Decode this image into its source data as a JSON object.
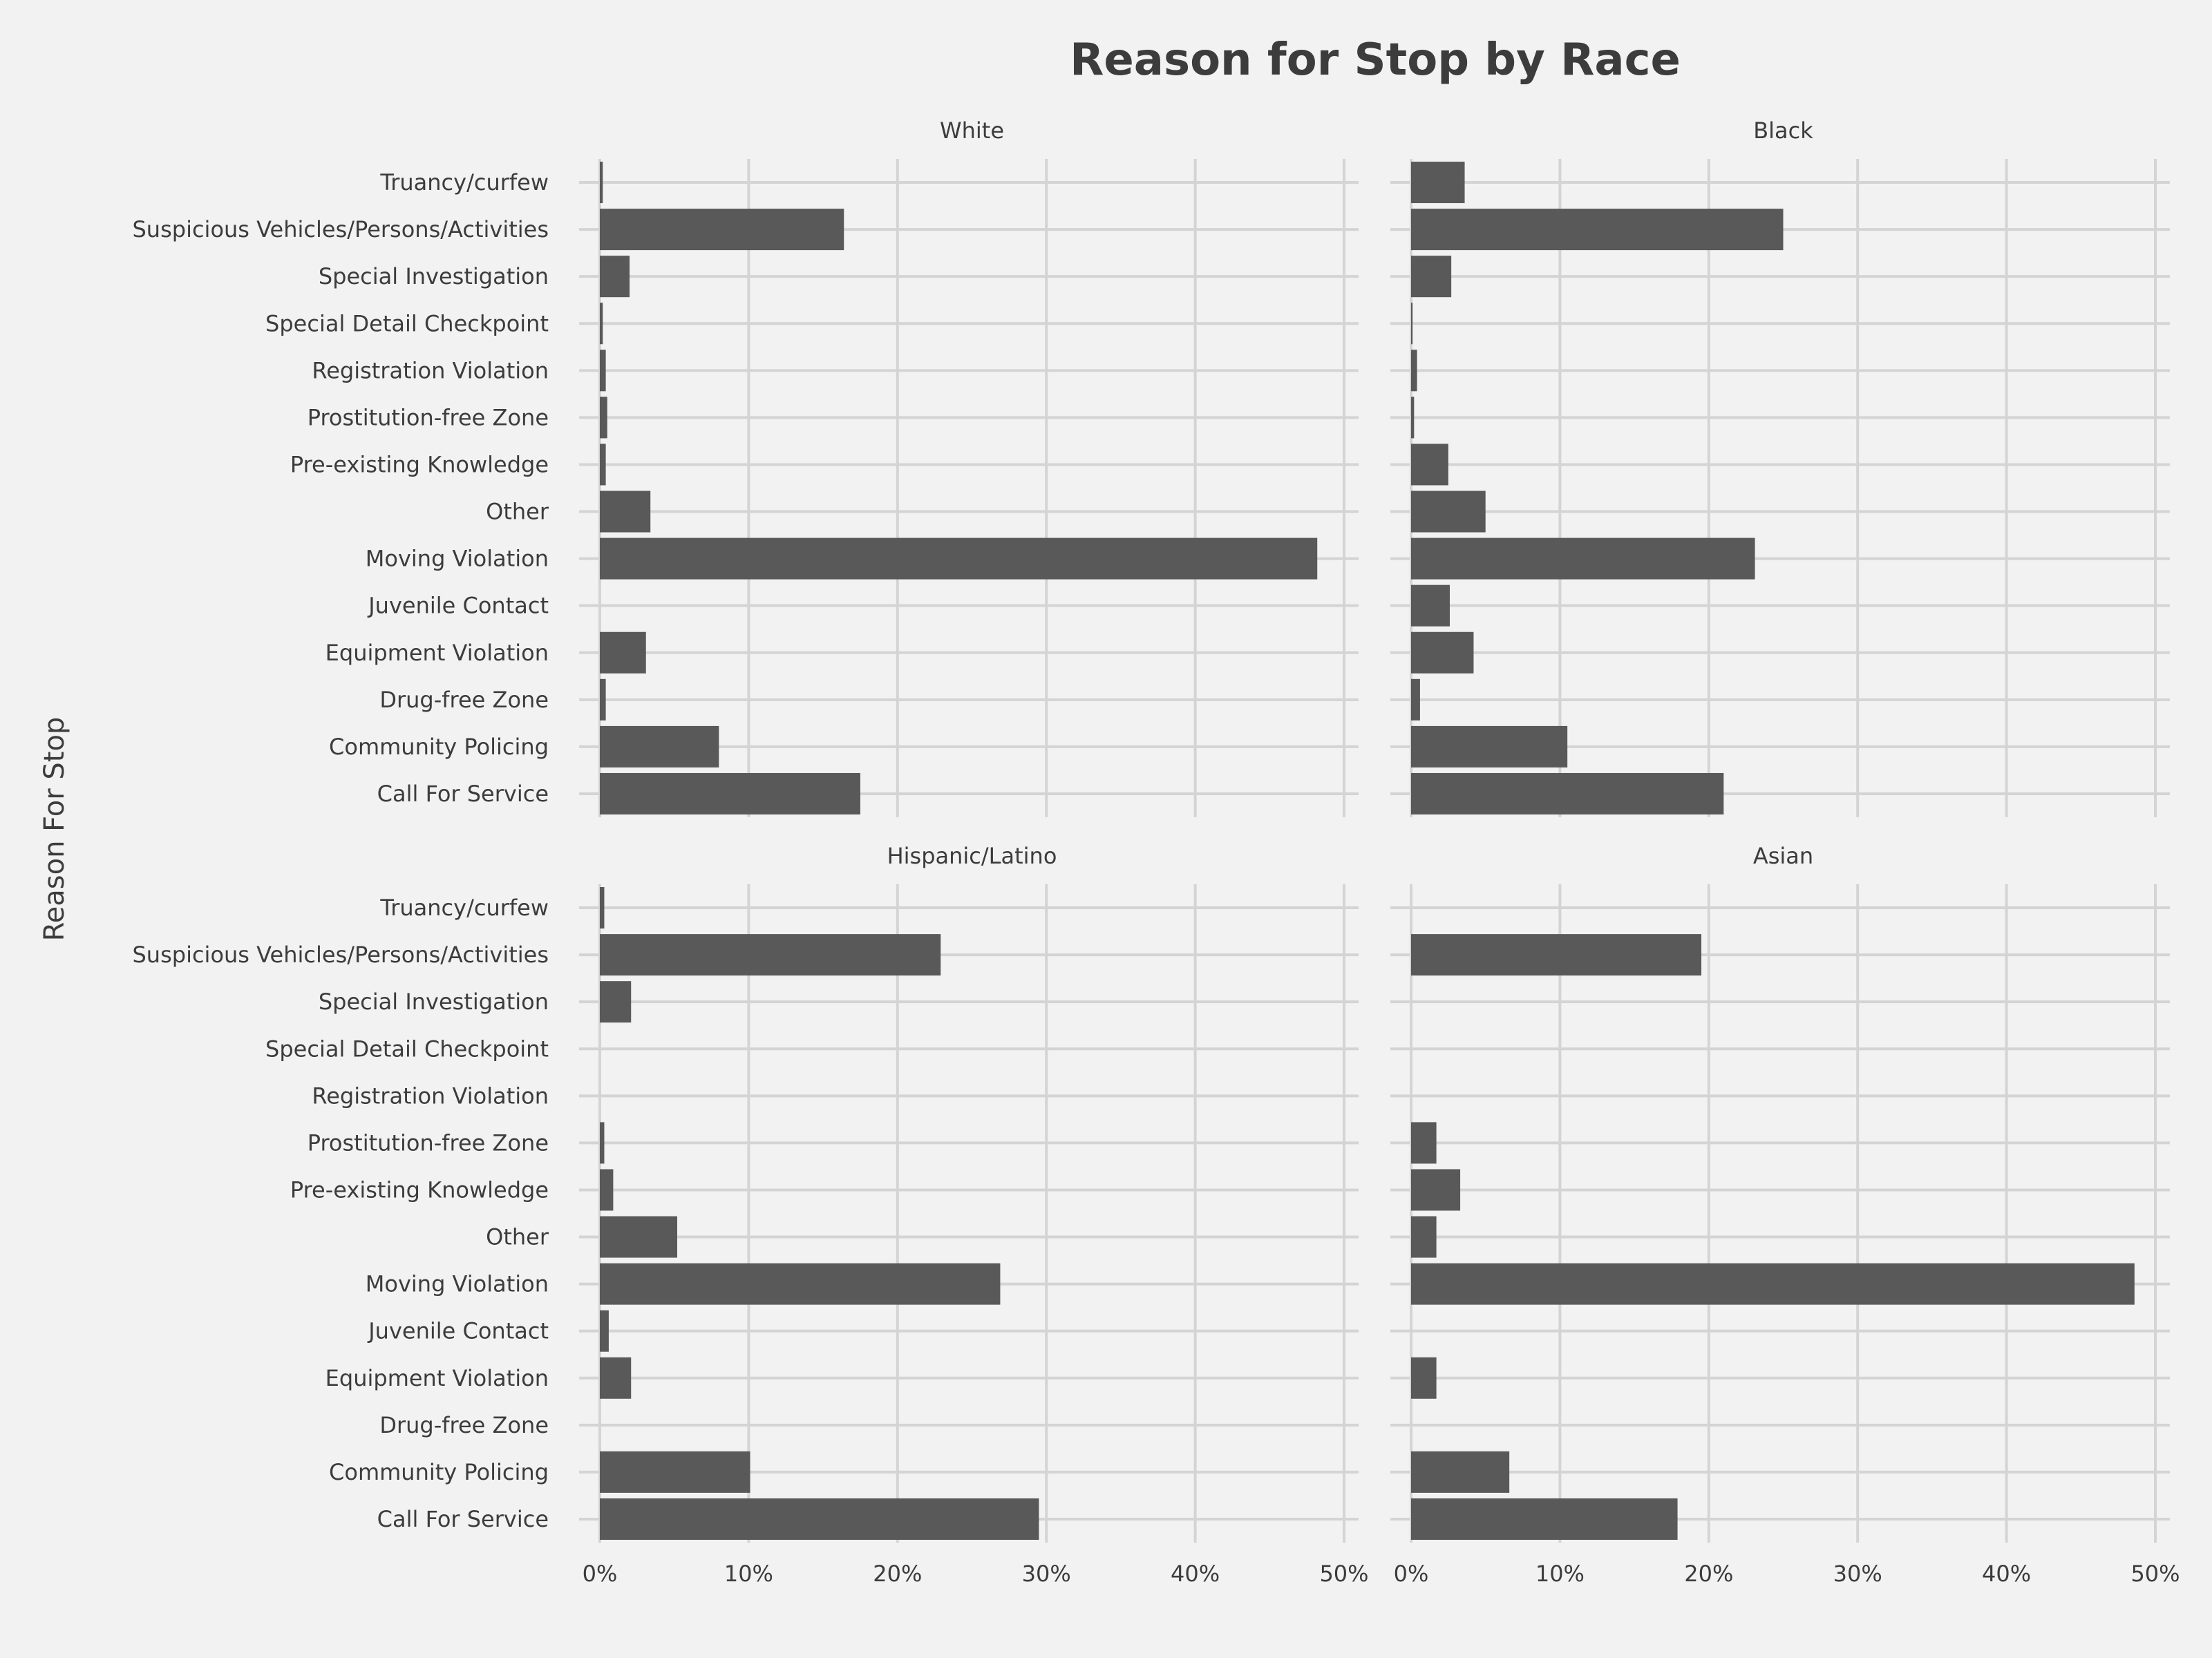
{
  "chart_data": {
    "type": "bar",
    "orientation": "horizontal",
    "title": "Reason for Stop by Race",
    "ylabel": "Reason For Stop",
    "xlabel": "",
    "xlim": [
      0,
      0.5
    ],
    "x_ticks": [
      0,
      0.1,
      0.2,
      0.3,
      0.4,
      0.5
    ],
    "x_tick_labels": [
      "0%",
      "10%",
      "20%",
      "30%",
      "40%",
      "50%"
    ],
    "grid": true,
    "bar_color": "#595959",
    "background_color": "#f2f2f2",
    "grid_color": "#d4d4d4",
    "categories": [
      "Truancy/curfew",
      "Suspicious Vehicles/Persons/Activities",
      "Special Investigation",
      "Special Detail Checkpoint",
      "Registration Violation",
      "Prostitution-free Zone",
      "Pre-existing Knowledge",
      "Other",
      "Moving Violation",
      "Juvenile Contact",
      "Equipment Violation",
      "Drug-free Zone",
      "Community Policing",
      "Call For Service"
    ],
    "series": [
      {
        "name": "White",
        "values": [
          0.002,
          0.164,
          0.02,
          0.002,
          0.004,
          0.005,
          0.004,
          0.034,
          0.482,
          0.0,
          0.031,
          0.004,
          0.08,
          0.175
        ]
      },
      {
        "name": "Black",
        "values": [
          0.036,
          0.25,
          0.027,
          0.001,
          0.004,
          0.002,
          0.025,
          0.05,
          0.231,
          0.026,
          0.042,
          0.006,
          0.105,
          0.21
        ]
      },
      {
        "name": "Hispanic/Latino",
        "values": [
          0.003,
          0.229,
          0.021,
          0.0,
          0.0,
          0.003,
          0.009,
          0.052,
          0.269,
          0.006,
          0.021,
          0.0,
          0.101,
          0.295
        ]
      },
      {
        "name": "Asian",
        "values": [
          0.0,
          0.195,
          0.0,
          0.0,
          0.0,
          0.017,
          0.033,
          0.017,
          0.486,
          0.0,
          0.017,
          0.0,
          0.066,
          0.179
        ]
      }
    ]
  }
}
